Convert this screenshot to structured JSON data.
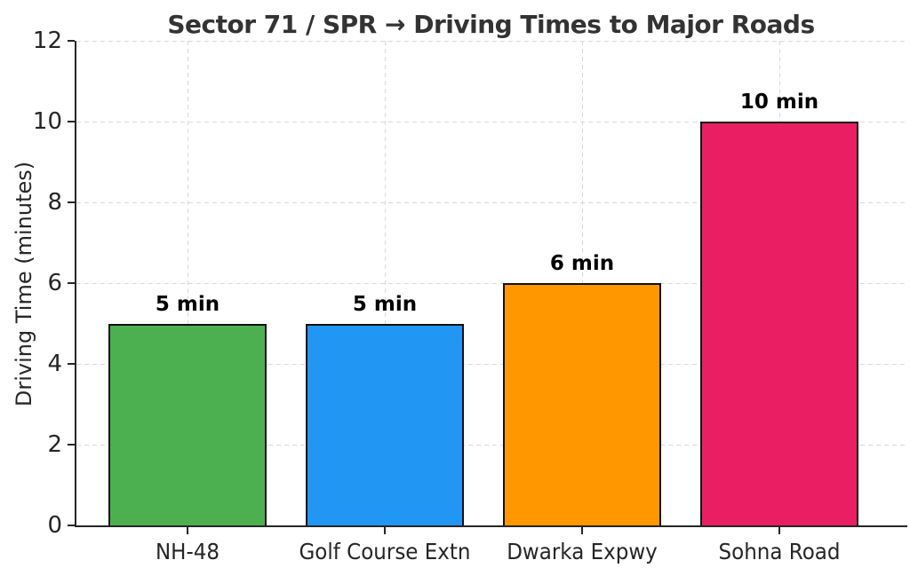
{
  "chart_data": {
    "type": "bar",
    "title": "Sector 71 / SPR → Driving Times to Major Roads",
    "xlabel": "",
    "ylabel": "Driving Time (minutes)",
    "categories": [
      "NH-48",
      "Golf Course Extn",
      "Dwarka Expwy",
      "Sohna Road"
    ],
    "values": [
      5,
      5,
      6,
      10
    ],
    "bar_labels": [
      "5 min",
      "5 min",
      "6 min",
      "10 min"
    ],
    "bar_colors": [
      "#4caf50",
      "#2196f3",
      "#ff9800",
      "#e91e63"
    ],
    "bar_edge_color": "#111111",
    "ylim": [
      0,
      12
    ],
    "yticks": [
      0,
      2,
      4,
      6,
      8,
      10,
      12
    ],
    "grid": "both-dashed",
    "legend_position": "none"
  },
  "colors": {
    "background": "#ffffff",
    "title_text": "#333333",
    "axis_text": "#262626",
    "grid_line": "#d9d9d9"
  }
}
